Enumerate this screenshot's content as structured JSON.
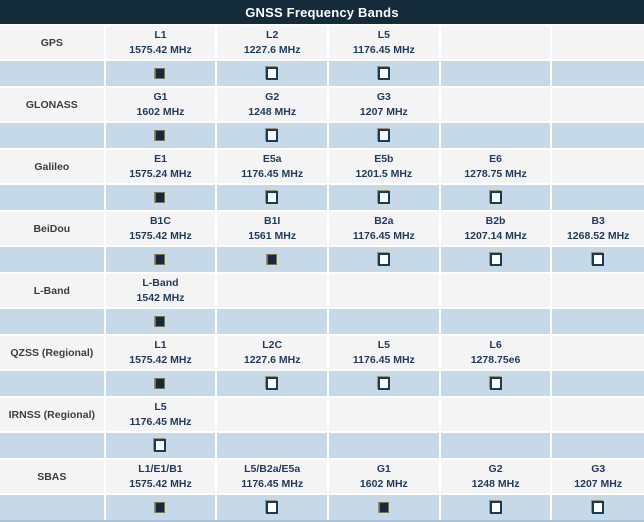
{
  "title": "GNSS Frequency Bands",
  "colors": {
    "header_bg": "#132b3b",
    "header_text": "#ffffff",
    "band_row_bg": "#f4f4f4",
    "checkbox_row_bg": "#c5d9e8",
    "band_text": "#1f3a5f",
    "system_label_text": "#3d3d3d",
    "checkbox_fill": "#0f2b41",
    "separator": "#ffffff"
  },
  "columns": 6,
  "systems": [
    {
      "name": "GPS",
      "bands": [
        {
          "band": "L1",
          "freq": "1575.42 MHz",
          "checked": true
        },
        {
          "band": "L2",
          "freq": "1227.6 MHz",
          "checked": false
        },
        {
          "band": "L5",
          "freq": "1176.45 MHz",
          "checked": false
        }
      ]
    },
    {
      "name": "GLONASS",
      "bands": [
        {
          "band": "G1",
          "freq": "1602 MHz",
          "checked": true
        },
        {
          "band": "G2",
          "freq": "1248 MHz",
          "checked": false
        },
        {
          "band": "G3",
          "freq": "1207 MHz",
          "checked": false
        }
      ]
    },
    {
      "name": "Galileo",
      "bands": [
        {
          "band": "E1",
          "freq": "1575.24 MHz",
          "checked": true
        },
        {
          "band": "E5a",
          "freq": "1176.45 MHz",
          "checked": false
        },
        {
          "band": "E5b",
          "freq": "1201.5 MHz",
          "checked": false
        },
        {
          "band": "E6",
          "freq": "1278.75 MHz",
          "checked": false
        }
      ]
    },
    {
      "name": "BeiDou",
      "bands": [
        {
          "band": "B1C",
          "freq": "1575.42 MHz",
          "checked": true
        },
        {
          "band": "B1I",
          "freq": "1561 MHz",
          "checked": true
        },
        {
          "band": "B2a",
          "freq": "1176.45 MHz",
          "checked": false
        },
        {
          "band": "B2b",
          "freq": "1207.14 MHz",
          "checked": false
        },
        {
          "band": "B3",
          "freq": "1268.52 MHz",
          "checked": false
        }
      ]
    },
    {
      "name": "L-Band",
      "bands": [
        {
          "band": "L-Band",
          "freq": "1542 MHz",
          "checked": true
        }
      ]
    },
    {
      "name": "QZSS (Regional)",
      "bands": [
        {
          "band": "L1",
          "freq": "1575.42 MHz",
          "checked": true
        },
        {
          "band": "L2C",
          "freq": "1227.6 MHz",
          "checked": false
        },
        {
          "band": "L5",
          "freq": "1176.45 MHz",
          "checked": false
        },
        {
          "band": "L6",
          "freq": "1278.75e6",
          "checked": false
        }
      ]
    },
    {
      "name": "IRNSS (Regional)",
      "bands": [
        {
          "band": "L5",
          "freq": "1176.45 MHz",
          "checked": false
        }
      ]
    },
    {
      "name": "SBAS",
      "bands": [
        {
          "band": "L1/E1/B1",
          "freq": "1575.42 MHz",
          "checked": true
        },
        {
          "band": "L5/B2a/E5a",
          "freq": "1176.45 MHz",
          "checked": false
        },
        {
          "band": "G1",
          "freq": "1602 MHz",
          "checked": true
        },
        {
          "band": "G2",
          "freq": "1248 MHz",
          "checked": false
        },
        {
          "band": "G3",
          "freq": "1207 MHz",
          "checked": false
        }
      ]
    }
  ]
}
